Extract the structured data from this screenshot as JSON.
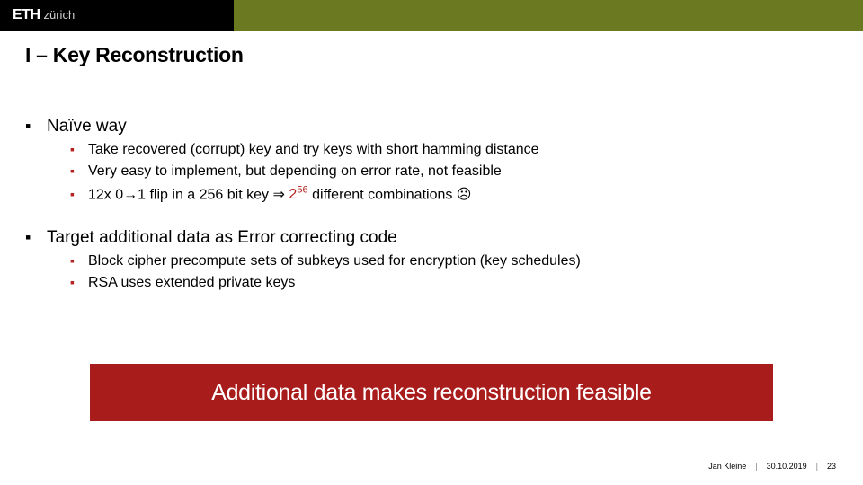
{
  "colors": {
    "topbar_accent": "#6b7a20",
    "logo_bg": "#000000",
    "bullet_red": "#b52020",
    "callout_bg": "#a91c1c",
    "callout_text": "#ffffff"
  },
  "logo": {
    "eth": "ETH",
    "zurich": "zürich"
  },
  "title": "I – Key Reconstruction",
  "sections": [
    {
      "heading": "Naïve way",
      "items": [
        {
          "text": "Take recovered (corrupt) key and try keys with short hamming distance"
        },
        {
          "text": "Very easy to implement, but depending on error rate, not feasible"
        },
        {
          "prefix": "12x 0→1 flip in a 256 bit key ⇒ ",
          "red_base": "2",
          "red_exp": "56",
          "suffix": " different combinations ☹"
        }
      ]
    },
    {
      "heading": "Target additional data as Error correcting code",
      "items": [
        {
          "text": "Block cipher precompute sets of subkeys used for encryption (key schedules)"
        },
        {
          "text": "RSA uses extended private keys"
        }
      ]
    }
  ],
  "callout": "Additional data makes reconstruction feasible",
  "footer": {
    "author": "Jan Kleine",
    "date": "30.10.2019",
    "page": "23"
  }
}
